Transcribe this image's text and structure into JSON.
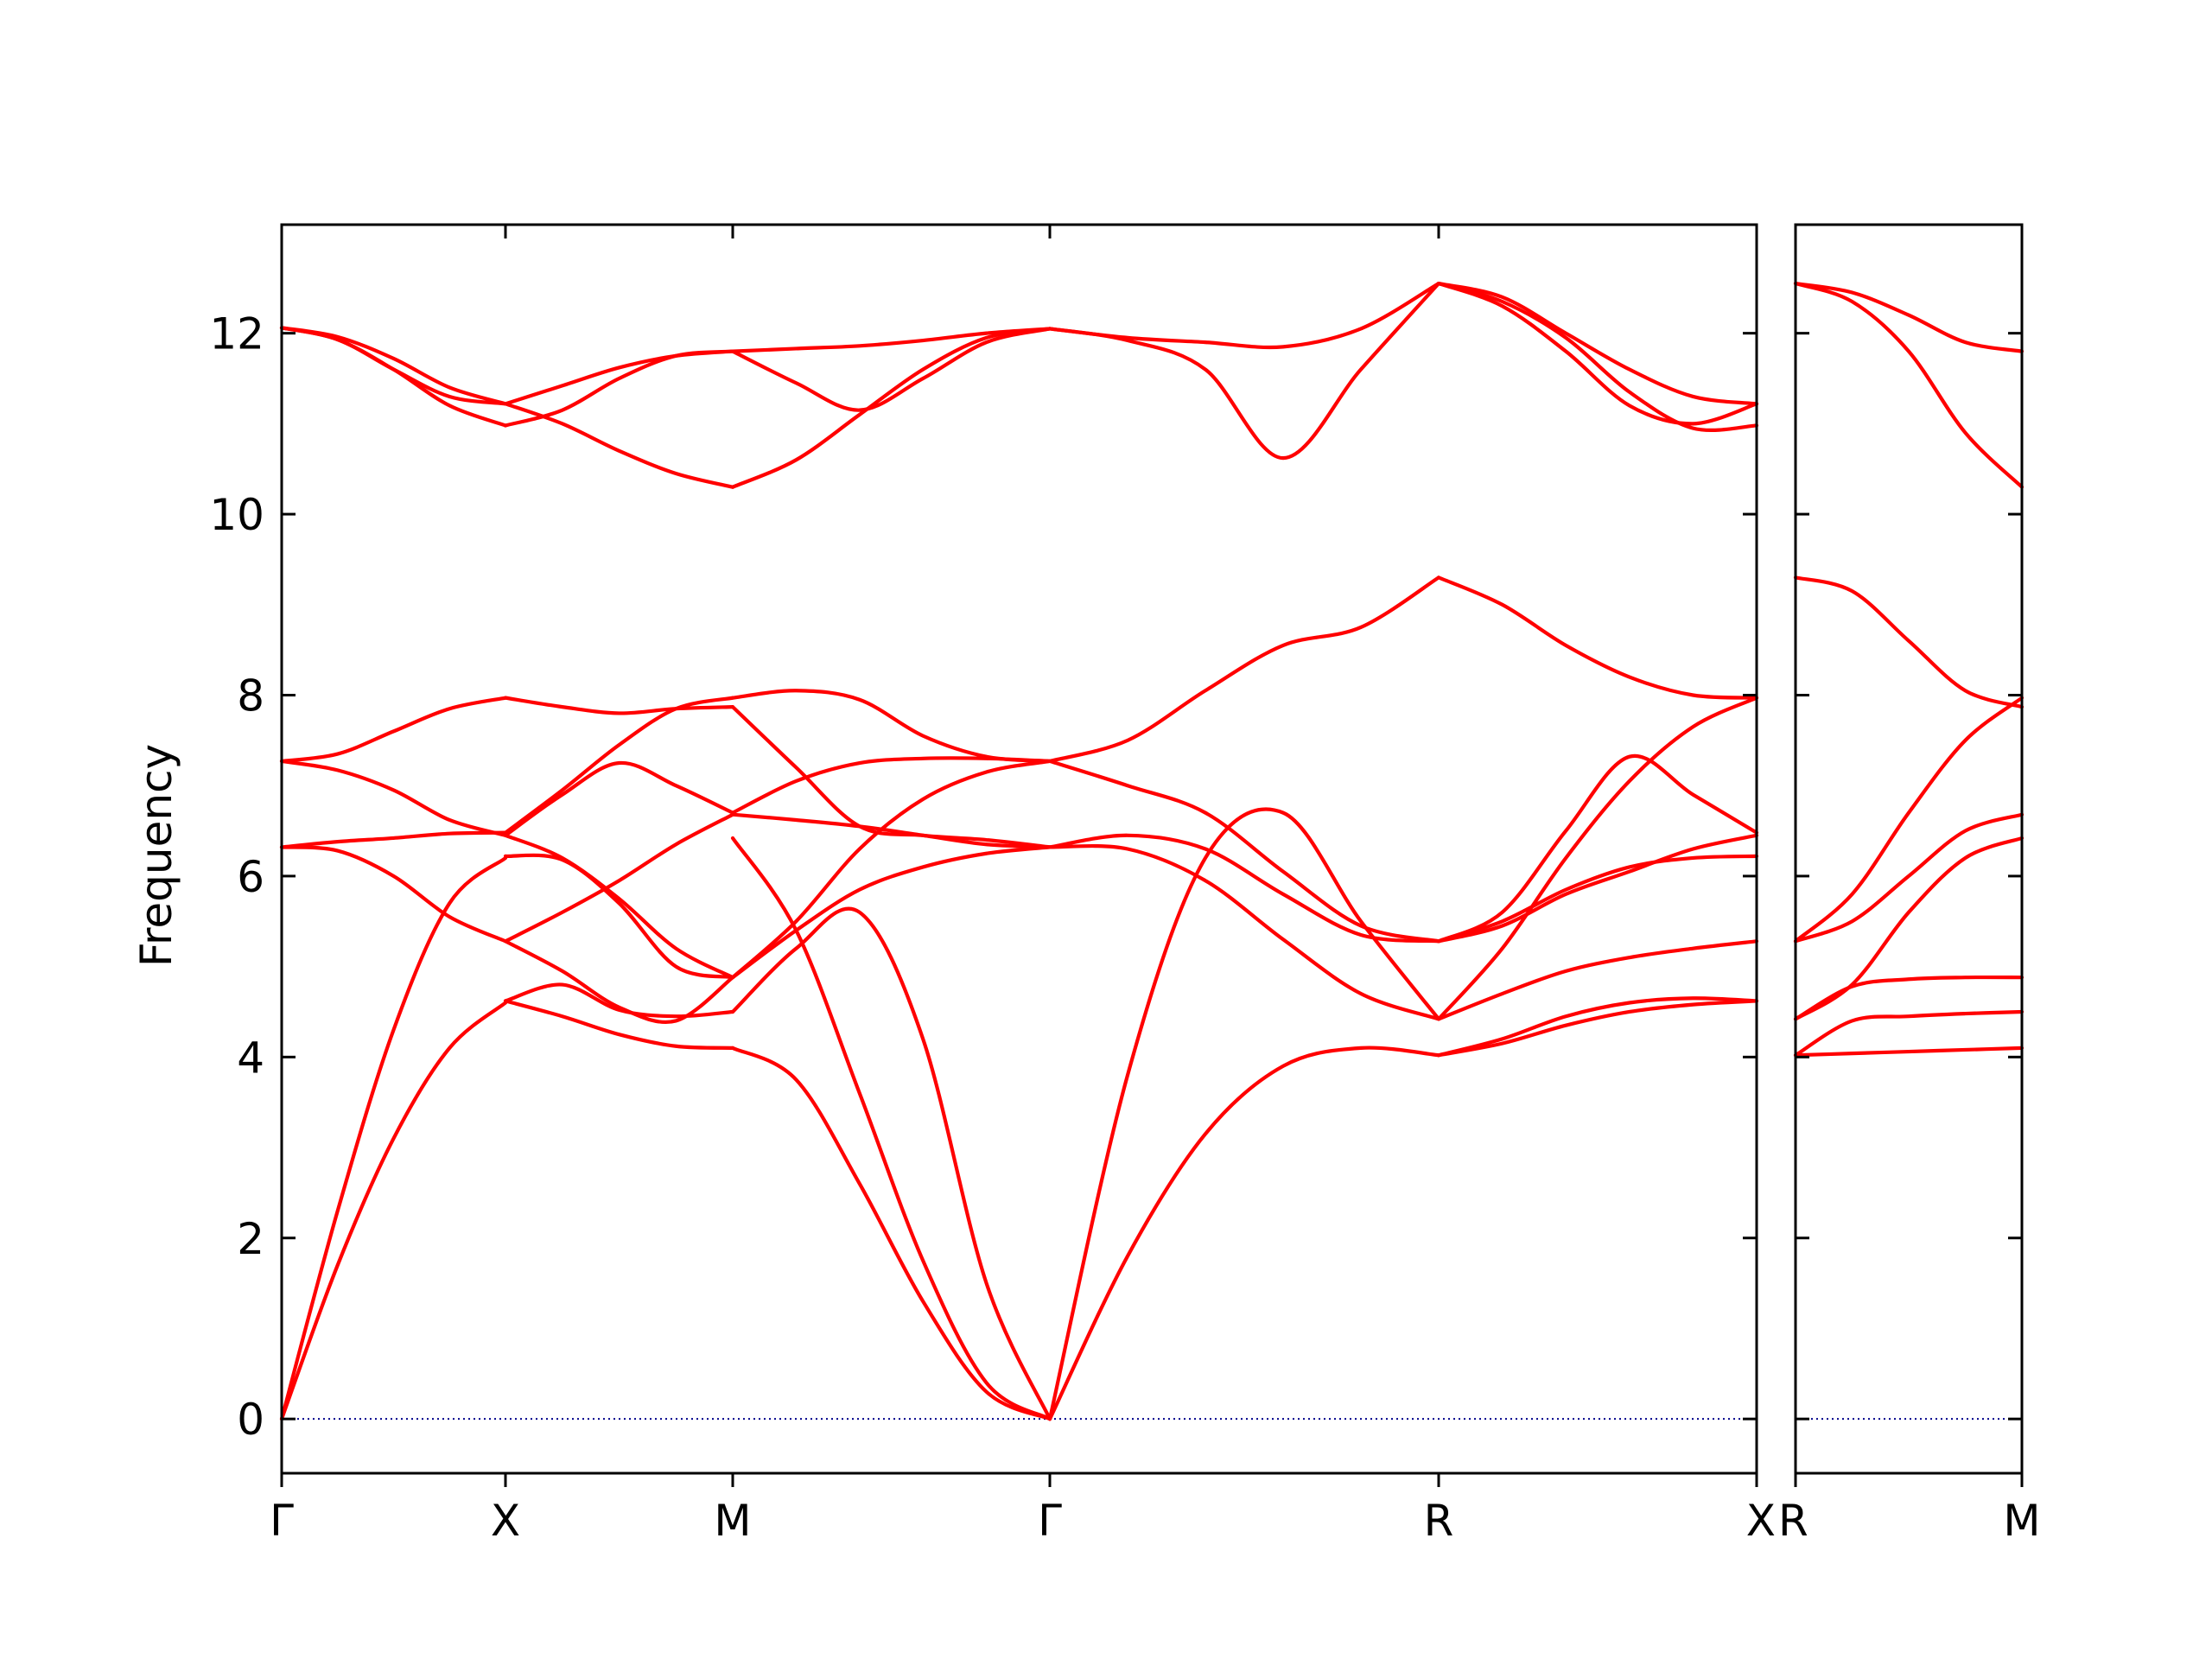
{
  "chart_data": {
    "type": "line",
    "ylabel": "Frequency",
    "ylim": [
      -0.6,
      13.2
    ],
    "y_ticks": [
      "0",
      "2",
      "4",
      "6",
      "8",
      "10",
      "12"
    ],
    "colors": {
      "bands": "#ff0000",
      "zero_line": "#00008b",
      "axes": "#000000"
    },
    "grid": false,
    "panels": [
      {
        "name": "main",
        "x_ticks": [
          "Γ",
          "X",
          "M",
          "Γ",
          "R",
          "X"
        ],
        "segments": [
          {
            "from": "Γ",
            "to": "X",
            "x": [
              0,
              0.25,
              0.5,
              0.75,
              1
            ],
            "series": [
              {
                "values": [
                  0,
                  1.7,
                  3.1,
                  4.1,
                  4.6
                ]
              },
              {
                "values": [
                  0,
                  2.3,
                  4.3,
                  5.7,
                  6.2
                ]
              },
              {
                "values": [
                  6.32,
                  6.28,
                  6.0,
                  5.55,
                  5.28
                ]
              },
              {
                "values": [
                  6.32,
                  6.38,
                  6.42,
                  6.47,
                  6.48
                ]
              },
              {
                "values": [
                  7.27,
                  7.17,
                  6.95,
                  6.62,
                  6.45
                ]
              },
              {
                "values": [
                  7.27,
                  7.35,
                  7.6,
                  7.85,
                  7.97
                ]
              },
              {
                "values": [
                  12.06,
                  11.93,
                  11.6,
                  11.3,
                  11.22
                ]
              },
              {
                "values": [
                  12.06,
                  11.93,
                  11.6,
                  11.2,
                  10.98
                ]
              },
              {
                "values": [
                  12.06,
                  11.96,
                  11.72,
                  11.4,
                  11.22
                ]
              }
            ]
          },
          {
            "from": "X",
            "to": "M",
            "x": [
              0,
              0.25,
              0.5,
              0.75,
              1
            ],
            "series": [
              {
                "values": [
                  4.62,
                  4.45,
                  4.25,
                  4.12,
                  4.1
                ]
              },
              {
                "values": [
                  4.62,
                  4.8,
                  4.52,
                  4.45,
                  4.5
                ]
              },
              {
                "values": [
                  5.28,
                  4.95,
                  4.55,
                  4.4,
                  4.88
                ]
              },
              {
                "values": [
                  5.28,
                  5.6,
                  5.95,
                  6.35,
                  6.68
                ]
              },
              {
                "values": [
                  6.22,
                  6.18,
                  5.7,
                  5.0,
                  4.88
                ]
              },
              {
                "values": [
                  6.48,
                  6.95,
                  7.45,
                  7.85,
                  7.97
                ]
              },
              {
                "values": [
                  6.45,
                  6.2,
                  5.75,
                  5.2,
                  4.88
                ]
              },
              {
                "values": [
                  7.97,
                  7.87,
                  7.8,
                  7.85,
                  7.87
                ]
              },
              {
                "values": [
                  6.45,
                  6.9,
                  7.25,
                  7.0,
                  6.7
                ]
              },
              {
                "values": [
                  11.22,
                  11.42,
                  11.62,
                  11.75,
                  11.8
                ]
              },
              {
                "values": [
                  10.98,
                  11.15,
                  11.5,
                  11.75,
                  11.8
                ]
              },
              {
                "values": [
                  11.22,
                  11.0,
                  10.7,
                  10.45,
                  10.3
                ]
              }
            ]
          },
          {
            "from": "M",
            "to": "Γ",
            "x": [
              0,
              0.2,
              0.4,
              0.6,
              0.8,
              1
            ],
            "series": [
              {
                "values": [
                  4.1,
                  3.75,
                  2.6,
                  1.3,
                  0.3,
                  0
                ]
              },
              {
                "values": [
                  6.42,
                  5.4,
                  3.6,
                  1.75,
                  0.4,
                  0
                ]
              },
              {
                "values": [
                  4.5,
                  5.2,
                  5.6,
                  4.2,
                  1.5,
                  0
                ]
              },
              {
                "values": [
                  4.88,
                  5.4,
                  5.85,
                  6.1,
                  6.25,
                  6.32
                ]
              },
              {
                "values": [
                  6.68,
                  6.62,
                  6.55,
                  6.45,
                  6.35,
                  6.32
                ]
              },
              {
                "values": [
                  4.88,
                  5.5,
                  6.3,
                  6.85,
                  7.15,
                  7.27
                ]
              },
              {
                "values": [
                  6.7,
                  7.05,
                  7.25,
                  7.3,
                  7.3,
                  7.27
                ]
              },
              {
                "values": [
                  7.87,
                  7.2,
                  6.55,
                  6.45,
                  6.4,
                  6.32
                ]
              },
              {
                "values": [
                  7.97,
                  8.05,
                  7.95,
                  7.55,
                  7.32,
                  7.27
                ]
              },
              {
                "values": [
                  11.8,
                  11.83,
                  11.86,
                  11.92,
                  12.0,
                  12.05
                ]
              },
              {
                "values": [
                  11.8,
                  11.45,
                  11.15,
                  11.5,
                  11.9,
                  12.05
                ]
              },
              {
                "values": [
                  10.3,
                  10.6,
                  11.1,
                  11.6,
                  11.95,
                  12.05
                ]
              }
            ]
          },
          {
            "from": "Γ",
            "to": "R",
            "x": [
              0,
              0.2,
              0.4,
              0.6,
              0.8,
              1
            ],
            "series": [
              {
                "values": [
                  0,
                  1.8,
                  3.15,
                  3.9,
                  4.1,
                  4.02
                ]
              },
              {
                "values": [
                  0,
                  3.8,
                  6.2,
                  6.7,
                  5.5,
                  4.42
                ]
              },
              {
                "values": [
                  6.32,
                  6.3,
                  5.95,
                  5.3,
                  4.7,
                  4.42
                ]
              },
              {
                "values": [
                  6.32,
                  6.45,
                  6.3,
                  5.8,
                  5.35,
                  5.28
                ]
              },
              {
                "values": [
                  7.27,
                  7.0,
                  6.7,
                  6.05,
                  5.45,
                  5.28
                ]
              },
              {
                "values": [
                  7.27,
                  7.5,
                  8.05,
                  8.55,
                  8.75,
                  9.3
                ]
              },
              {
                "values": [
                  12.05,
                  11.95,
                  11.9,
                  11.85,
                  12.05,
                  12.55
                ]
              },
              {
                "values": [
                  12.05,
                  11.92,
                  11.6,
                  10.62,
                  11.6,
                  12.55
                ]
              }
            ]
          },
          {
            "from": "R",
            "to": "X",
            "x": [
              0,
              0.2,
              0.4,
              0.6,
              0.8,
              1
            ],
            "series": [
              {
                "values": [
                  4.02,
                  4.15,
                  4.35,
                  4.5,
                  4.58,
                  4.62
                ]
              },
              {
                "values": [
                  4.02,
                  4.2,
                  4.45,
                  4.6,
                  4.65,
                  4.62
                ]
              },
              {
                "values": [
                  4.42,
                  4.7,
                  4.95,
                  5.1,
                  5.2,
                  5.28
                ]
              },
              {
                "values": [
                  4.42,
                  5.2,
                  6.2,
                  7.05,
                  7.65,
                  7.97
                ]
              },
              {
                "values": [
                  5.28,
                  5.5,
                  5.85,
                  6.1,
                  6.2,
                  6.22
                ]
              },
              {
                "values": [
                  5.28,
                  5.6,
                  6.5,
                  7.32,
                  6.9,
                  6.48
                ]
              },
              {
                "values": [
                  5.28,
                  5.45,
                  5.8,
                  6.05,
                  6.3,
                  6.45
                ]
              },
              {
                "values": [
                  9.3,
                  9.0,
                  8.55,
                  8.2,
                  8.0,
                  7.97
                ]
              },
              {
                "values": [
                  12.55,
                  12.4,
                  12.0,
                  11.6,
                  11.3,
                  11.22
                ]
              },
              {
                "values": [
                  12.55,
                  12.35,
                  11.95,
                  11.35,
                  10.95,
                  10.98
                ]
              },
              {
                "values": [
                  12.55,
                  12.3,
                  11.8,
                  11.2,
                  11.0,
                  11.22
                ]
              }
            ]
          }
        ]
      },
      {
        "name": "side",
        "x_ticks": [
          "R",
          "M"
        ],
        "segments": [
          {
            "from": "R",
            "to": "M",
            "x": [
              0,
              0.25,
              0.5,
              0.75,
              1
            ],
            "series": [
              {
                "values": [
                  4.02,
                  4.04,
                  4.06,
                  4.08,
                  4.1
                ]
              },
              {
                "values": [
                  4.02,
                  4.4,
                  4.45,
                  4.48,
                  4.5
                ]
              },
              {
                "values": [
                  4.42,
                  4.78,
                  4.86,
                  4.88,
                  4.88
                ]
              },
              {
                "values": [
                  4.42,
                  4.8,
                  5.6,
                  6.2,
                  6.42
                ]
              },
              {
                "values": [
                  5.28,
                  5.5,
                  6.0,
                  6.5,
                  6.68
                ]
              },
              {
                "values": [
                  5.28,
                  5.8,
                  6.7,
                  7.5,
                  7.97
                ]
              },
              {
                "values": [
                  9.3,
                  9.15,
                  8.6,
                  8.05,
                  7.87
                ]
              },
              {
                "values": [
                  12.55,
                  12.35,
                  11.8,
                  10.9,
                  10.3
                ]
              },
              {
                "values": [
                  12.55,
                  12.45,
                  12.2,
                  11.9,
                  11.8
                ]
              }
            ]
          }
        ]
      }
    ]
  }
}
